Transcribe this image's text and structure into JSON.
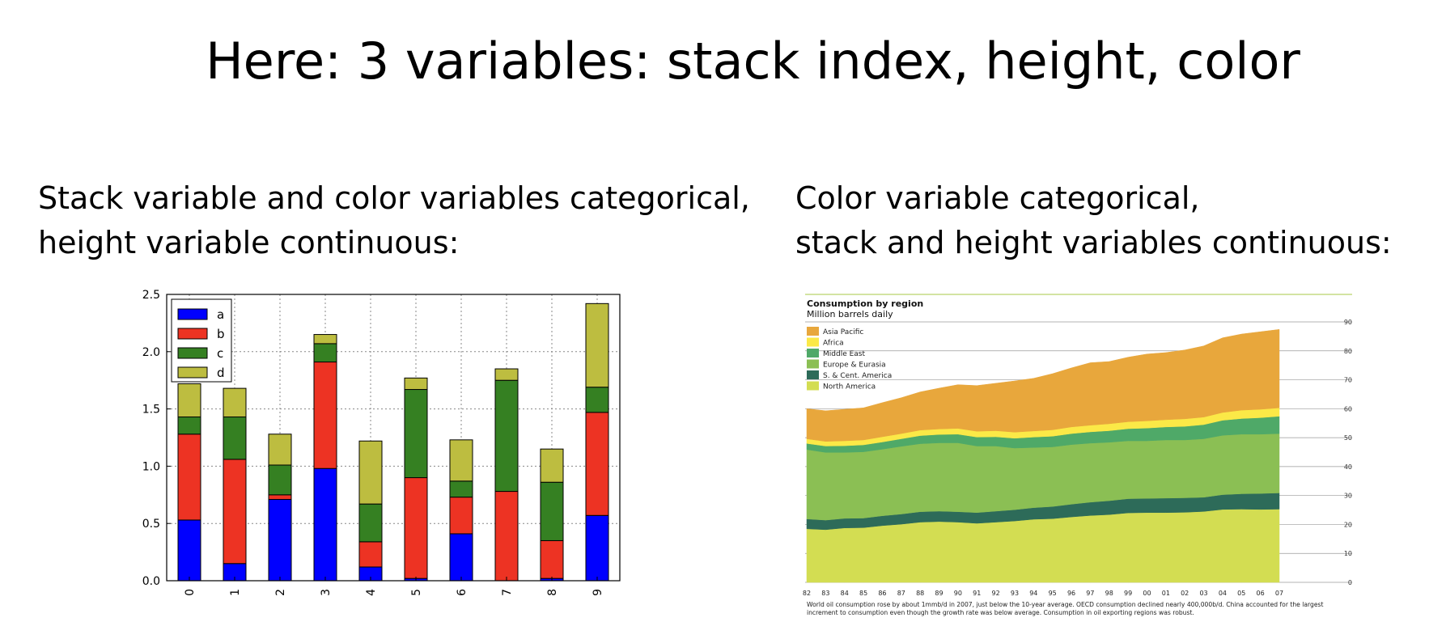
{
  "slide": {
    "title": "Here: 3 variables: stack index, height, color",
    "left_caption": [
      "Stack variable and color variables categorical,",
      "height variable continuous:"
    ],
    "right_caption": [
      "Color variable categorical,",
      "stack and height variables continuous:"
    ]
  },
  "chart_data": [
    {
      "type": "bar",
      "stacked": true,
      "categories": [
        "0",
        "1",
        "2",
        "3",
        "4",
        "5",
        "6",
        "7",
        "8",
        "9"
      ],
      "series": [
        {
          "name": "a",
          "color": "#0000ff",
          "values": [
            0.53,
            0.15,
            0.71,
            0.98,
            0.12,
            0.02,
            0.41,
            0.0,
            0.02,
            0.57
          ]
        },
        {
          "name": "b",
          "color": "#ed3323",
          "values": [
            0.75,
            0.91,
            0.04,
            0.93,
            0.22,
            0.88,
            0.32,
            0.78,
            0.33,
            0.9
          ]
        },
        {
          "name": "c",
          "color": "#358022",
          "values": [
            0.15,
            0.37,
            0.26,
            0.16,
            0.33,
            0.77,
            0.14,
            0.97,
            0.51,
            0.22
          ]
        },
        {
          "name": "d",
          "color": "#bdbd40",
          "values": [
            0.29,
            0.25,
            0.27,
            0.08,
            0.55,
            0.1,
            0.36,
            0.1,
            0.29,
            0.73
          ]
        }
      ],
      "ylim": [
        0,
        2.5
      ],
      "yticks": [
        "0.0",
        "0.5",
        "1.0",
        "1.5",
        "2.0",
        "2.5"
      ],
      "grid": true,
      "legend": "top-left"
    },
    {
      "type": "area",
      "stacked": true,
      "title": "Consumption by region",
      "subtitle": "Million barrels daily",
      "x": [
        "82",
        "83",
        "84",
        "85",
        "86",
        "87",
        "88",
        "89",
        "90",
        "91",
        "92",
        "93",
        "94",
        "95",
        "96",
        "97",
        "98",
        "99",
        "00",
        "01",
        "02",
        "03",
        "04",
        "05",
        "06",
        "07"
      ],
      "series": [
        {
          "name": "North America",
          "color": "#d3dd52",
          "values": [
            18.5,
            18.2,
            18.8,
            18.9,
            19.6,
            20.1,
            20.8,
            21.0,
            20.8,
            20.4,
            20.8,
            21.2,
            21.8,
            22.0,
            22.6,
            23.1,
            23.4,
            24.0,
            24.1,
            24.1,
            24.2,
            24.5,
            25.2,
            25.3,
            25.2,
            25.3
          ]
        },
        {
          "name": "S. & Cent. America",
          "color": "#2d6b59",
          "values": [
            3.4,
            3.3,
            3.3,
            3.3,
            3.4,
            3.5,
            3.6,
            3.6,
            3.6,
            3.7,
            3.8,
            3.9,
            4.0,
            4.2,
            4.4,
            4.6,
            4.8,
            4.9,
            4.9,
            5.0,
            5.0,
            4.9,
            5.1,
            5.3,
            5.5,
            5.6
          ]
        },
        {
          "name": "Europe & Eurasia",
          "color": "#8bbf54",
          "values": [
            24.0,
            23.4,
            22.8,
            22.9,
            23.0,
            23.4,
            23.5,
            23.6,
            23.8,
            23.0,
            22.5,
            21.3,
            20.8,
            20.6,
            20.6,
            20.4,
            20.2,
            20.0,
            19.9,
            20.1,
            20.0,
            20.2,
            20.5,
            20.6,
            20.5,
            20.5
          ]
        },
        {
          "name": "Middle East",
          "color": "#4fa968",
          "values": [
            2.1,
            2.2,
            2.3,
            2.4,
            2.5,
            2.6,
            2.8,
            2.9,
            3.0,
            3.1,
            3.2,
            3.4,
            3.6,
            3.7,
            3.8,
            3.9,
            4.0,
            4.2,
            4.4,
            4.5,
            4.7,
            4.9,
            5.2,
            5.4,
            5.7,
            6.0
          ]
        },
        {
          "name": "Africa",
          "color": "#fbe947",
          "values": [
            1.6,
            1.6,
            1.7,
            1.7,
            1.8,
            1.8,
            1.9,
            1.9,
            2.0,
            2.0,
            2.1,
            2.1,
            2.1,
            2.2,
            2.3,
            2.3,
            2.4,
            2.4,
            2.5,
            2.5,
            2.6,
            2.6,
            2.7,
            2.9,
            2.9,
            2.9
          ]
        },
        {
          "name": "Asia Pacific",
          "color": "#e8a73c",
          "values": [
            10.4,
            10.6,
            10.9,
            11.1,
            11.8,
            12.4,
            13.2,
            14.1,
            15.1,
            15.8,
            16.4,
            17.7,
            18.2,
            19.4,
            20.4,
            21.6,
            21.5,
            22.3,
            23.1,
            23.2,
            23.8,
            24.6,
            25.8,
            26.3,
            26.8,
            27.1
          ]
        }
      ],
      "ylim": [
        0,
        90
      ],
      "yticks": [
        "0",
        "10",
        "20",
        "30",
        "40",
        "50",
        "60",
        "70",
        "80",
        "90"
      ],
      "legend": "top-left",
      "footnote": [
        "World oil consumption rose by about 1mmb/d in 2007, just below the 10-year average. OECD consumption declined nearly 400,000b/d. China accounted for the largest",
        "increment to consumption even though the growth rate was below average. Consumption in oil exporting regions was robust."
      ]
    }
  ]
}
